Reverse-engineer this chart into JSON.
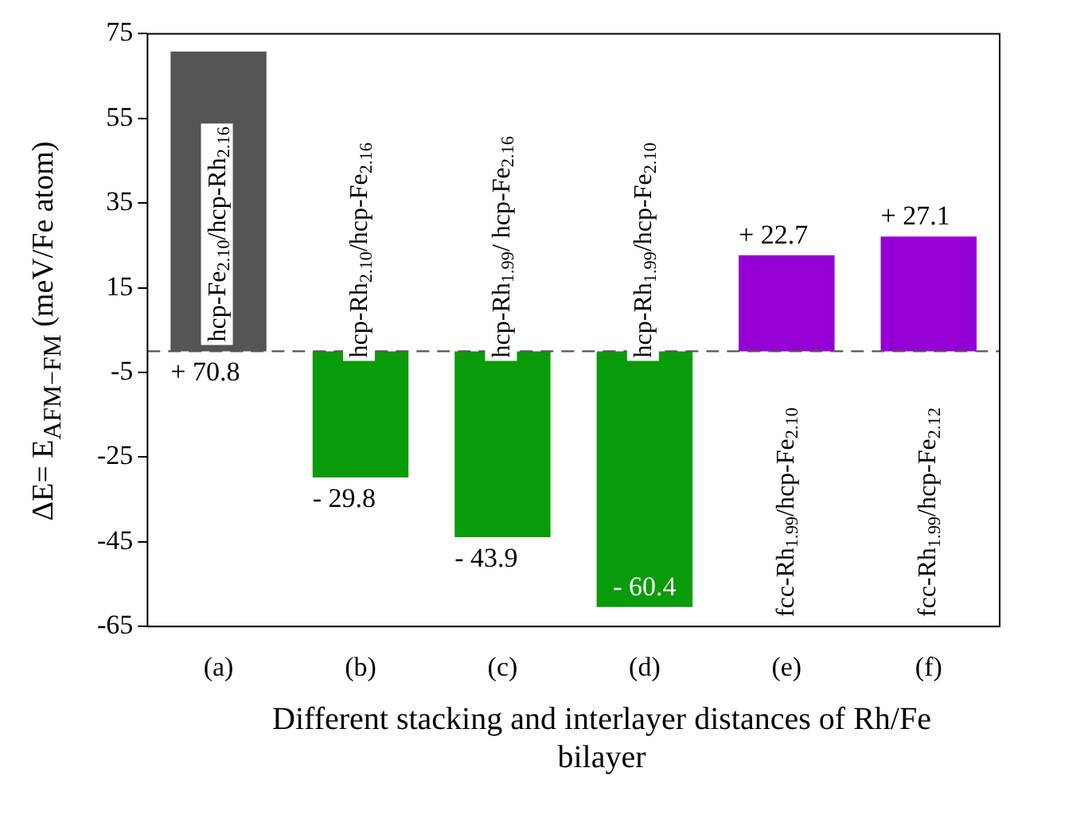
{
  "chart_data": {
    "type": "bar",
    "xlabel": "Different stacking and interlayer distances of Rh/Fe bilayer",
    "ylabel": "ΔE= E$_{AFM−FM}$  (meV/Fe atom)",
    "categories": [
      "(a)",
      "(b)",
      "(c)",
      "(d)",
      "(e)",
      "(f)"
    ],
    "values": [
      70.8,
      -29.8,
      -43.9,
      -60.4,
      22.7,
      27.1
    ],
    "colors": [
      "#555555",
      "#0a9b0a",
      "#0a9b0a",
      "#0a9b0a",
      "#9400d3",
      "#9400d3"
    ],
    "value_labels": [
      "+ 70.8",
      "- 29.8",
      "- 43.9",
      "- 60.4",
      "+ 22.7",
      "+ 27.1"
    ],
    "ylim": [
      -65,
      75
    ],
    "yticks": [
      -65,
      -45,
      -25,
      -5,
      15,
      35,
      55,
      75
    ],
    "grid": false,
    "legend": false,
    "ref_lines": [
      {
        "axis": "y",
        "value": 0,
        "color": "#555555",
        "line_style": "dashed"
      }
    ],
    "annotations": [
      "hcp-Fe$_{2.10}$/hcp-Rh$_{2.16}$",
      "hcp-Rh$_{2.10}$/hcp-Fe$_{2.16}$",
      "hcp-Rh$_{1.99}$/ hcp-Fe$_{2.16}$",
      "hcp-Rh$_{1.99}$/hcp-Fe$_{2.10}$",
      "fcc-Rh$_{1.99}$/hcp-Fe$_{2.10}$",
      "fcc-Rh$_{1.99}$/hcp-Fe$_{2.12}$"
    ]
  }
}
